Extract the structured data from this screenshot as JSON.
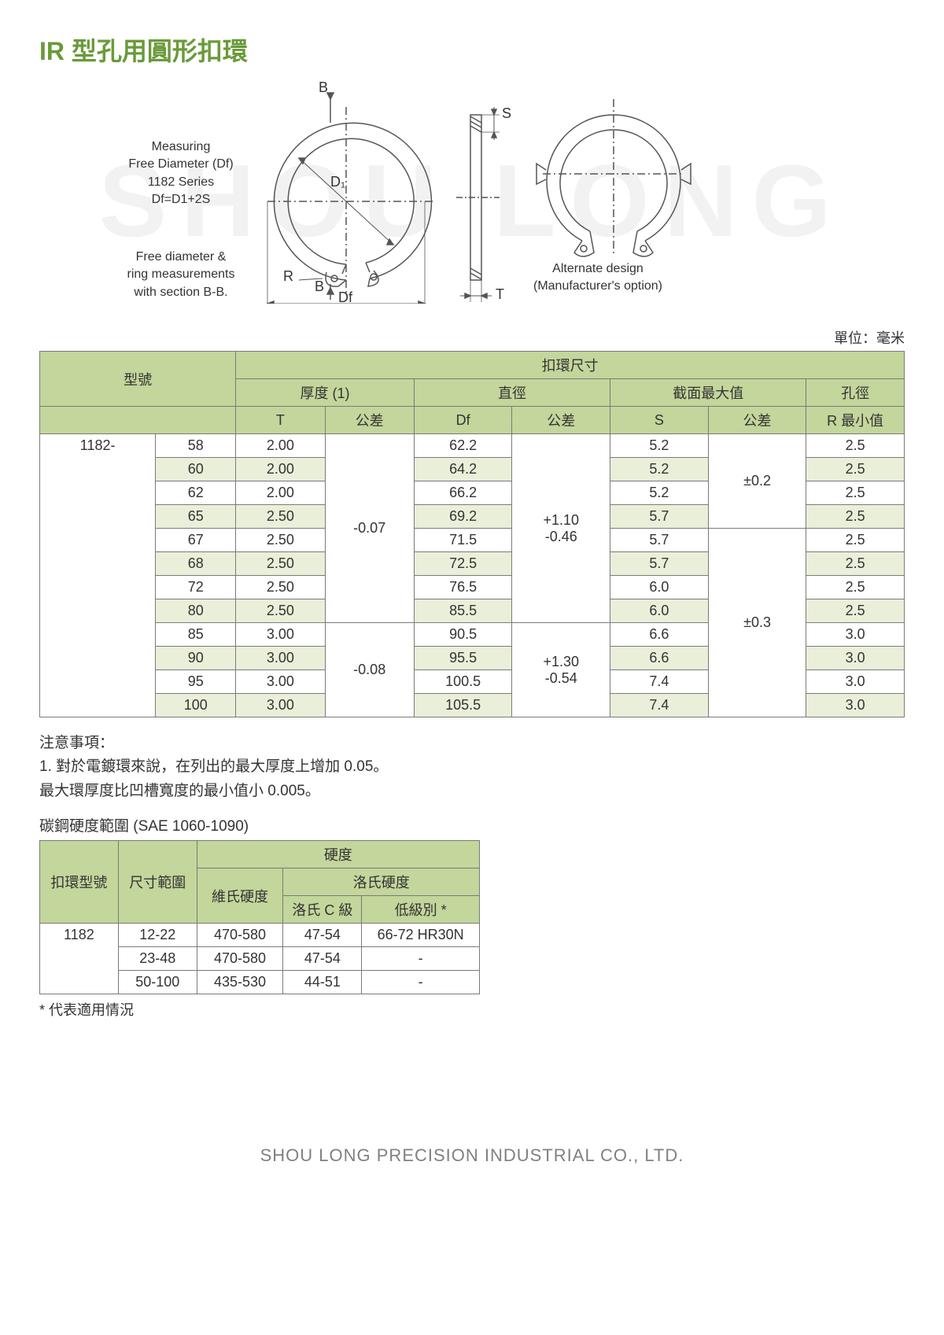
{
  "title_text": "IR 型孔用圓形扣環",
  "title_color": "#6a9a3a",
  "watermark_text": "SHOU LONG",
  "diagram": {
    "left_text_1_l1": "Measuring",
    "left_text_1_l2": "Free Diameter (Df)",
    "left_text_1_l3": "1182 Series",
    "left_text_1_l4": "Df=D1+2S",
    "left_text_2_l1": "Free diameter &",
    "left_text_2_l2": "ring measurements",
    "left_text_2_l3": "with section B-B.",
    "right_text_l1": "Alternate design",
    "right_text_l2": "(Manufacturer's option)",
    "label_B1": "B",
    "label_B2": "B",
    "label_S": "S",
    "label_D1": "D₁",
    "label_R": "R",
    "label_Df": "Df",
    "label_T": "T"
  },
  "unit_label": "單位：毫米",
  "main_table": {
    "header_bg": "#c3d69b",
    "alt_bg": "#eaefd9",
    "h_model": "型號",
    "h_ring_dim": "扣環尺寸",
    "h_thickness": "厚度 (1)",
    "h_diameter": "直徑",
    "h_section_max": "截面最大值",
    "h_hole": "孔徑",
    "h_T": "T",
    "h_tol": "公差",
    "h_Df": "Df",
    "h_S": "S",
    "h_R_min": "R 最小值",
    "series": "1182-",
    "rows": [
      {
        "size": "58",
        "T": "2.00",
        "Df": "62.2",
        "S": "5.2",
        "R": "2.5"
      },
      {
        "size": "60",
        "T": "2.00",
        "Df": "64.2",
        "S": "5.2",
        "R": "2.5"
      },
      {
        "size": "62",
        "T": "2.00",
        "Df": "66.2",
        "S": "5.2",
        "R": "2.5"
      },
      {
        "size": "65",
        "T": "2.50",
        "Df": "69.2",
        "S": "5.7",
        "R": "2.5"
      },
      {
        "size": "67",
        "T": "2.50",
        "Df": "71.5",
        "S": "5.7",
        "R": "2.5"
      },
      {
        "size": "68",
        "T": "2.50",
        "Df": "72.5",
        "S": "5.7",
        "R": "2.5"
      },
      {
        "size": "72",
        "T": "2.50",
        "Df": "76.5",
        "S": "6.0",
        "R": "2.5"
      },
      {
        "size": "80",
        "T": "2.50",
        "Df": "85.5",
        "S": "6.0",
        "R": "2.5"
      },
      {
        "size": "85",
        "T": "3.00",
        "Df": "90.5",
        "S": "6.6",
        "R": "3.0"
      },
      {
        "size": "90",
        "T": "3.00",
        "Df": "95.5",
        "S": "6.6",
        "R": "3.0"
      },
      {
        "size": "95",
        "T": "3.00",
        "Df": "100.5",
        "S": "7.4",
        "R": "3.0"
      },
      {
        "size": "100",
        "T": "3.00",
        "Df": "105.5",
        "S": "7.4",
        "R": "3.0"
      }
    ],
    "T_tol_1": "-0.07",
    "T_tol_2": "-0.08",
    "Df_tol_1_l1": "+1.10",
    "Df_tol_1_l2": "-0.46",
    "Df_tol_2_l1": "+1.30",
    "Df_tol_2_l2": "-0.54",
    "S_tol_1": "±0.2",
    "S_tol_2": "±0.3"
  },
  "notes": {
    "heading": "注意事項：",
    "line1": "1. 對於電鍍環來說，在列出的最大厚度上增加 0.05。",
    "line2": "最大環厚度比凹槽寬度的最小值小 0.005。"
  },
  "hardness_title": "碳鋼硬度範圍 (SAE 1060-1090)",
  "hardness_table": {
    "h_model": "扣環型號",
    "h_range": "尺寸範圍",
    "h_hardness": "硬度",
    "h_vickers": "維氏硬度",
    "h_rockwell": "洛氏硬度",
    "h_rockwell_c": "洛氏 C 級",
    "h_low": "低級別 *",
    "series": "1182",
    "rows": [
      {
        "range": "12-22",
        "vickers": "470-580",
        "rc": "47-54",
        "low": "66-72 HR30N"
      },
      {
        "range": "23-48",
        "vickers": "470-580",
        "rc": "47-54",
        "low": "-"
      },
      {
        "range": "50-100",
        "vickers": "435-530",
        "rc": "44-51",
        "low": "-"
      }
    ]
  },
  "footnote": "* 代表適用情況",
  "footer": "SHOU LONG PRECISION INDUSTRIAL CO., LTD."
}
